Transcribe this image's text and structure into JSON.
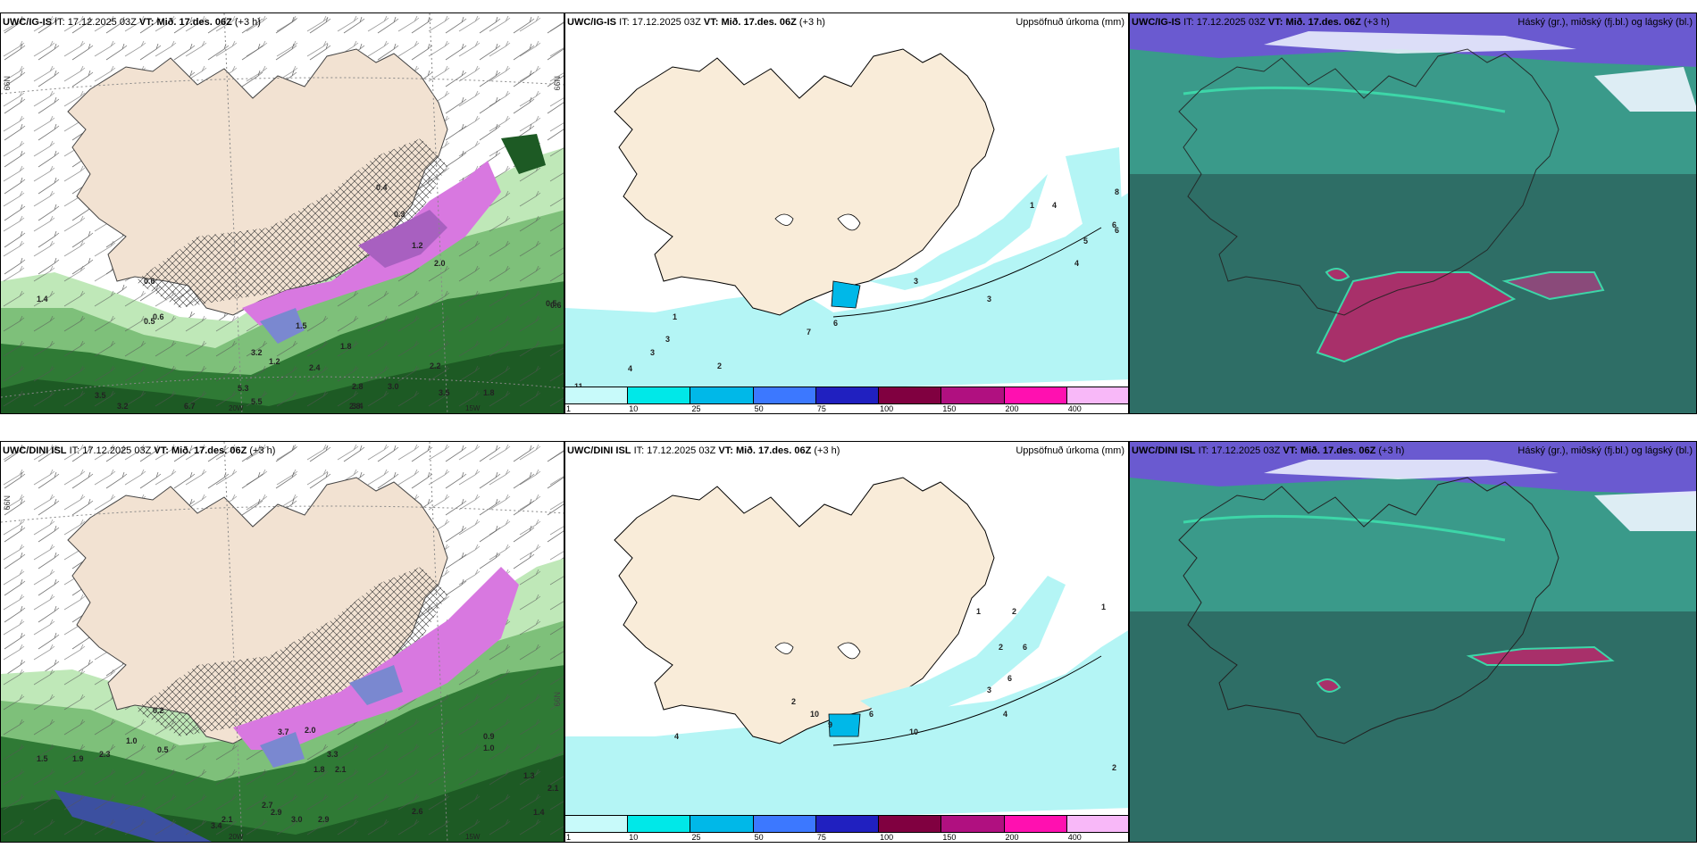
{
  "top": {
    "left": {
      "model": "UWC/IG-IS",
      "it_label": "IT:",
      "it_value": "17.12.2025 03Z",
      "vt_label": "VT:",
      "vt_value": "Mið. 17.des. 06Z",
      "lead": "(+3 h)",
      "lat_label": "66N",
      "lon_labels": [
        "20W",
        "15W"
      ],
      "values": [
        "0.6",
        "0.5",
        "1.4",
        "1.5",
        "3.2",
        "1.2",
        "2.4",
        "1.8",
        "2.8",
        "3.0",
        "3.5",
        "3.2",
        "5.3",
        "5.5",
        "6.7",
        "2.8",
        "3.4",
        "3.5",
        "2.2",
        "1.8",
        "0.5",
        "0.4",
        "0.3",
        "0.6",
        "1.2",
        "2.0",
        "0.6"
      ]
    },
    "middle": {
      "model": "UWC/IG-IS",
      "it_label": "IT:",
      "it_value": "17.12.2025 03Z",
      "vt_label": "VT:",
      "vt_value": "Mið. 17.des. 06Z",
      "lead": "(+3 h)",
      "product": "Uppsöfnuð úrkoma (mm)",
      "values": [
        "1",
        "3",
        "3",
        "4",
        "2",
        "11",
        "7",
        "6",
        "3",
        "3",
        "1",
        "4",
        "4",
        "5",
        "6",
        "8",
        "6"
      ]
    },
    "right": {
      "model": "UWC/IG-IS",
      "it_label": "IT:",
      "it_value": "17.12.2025 03Z",
      "vt_label": "VT:",
      "vt_value": "Mið. 17.des. 06Z",
      "lead": "(+3 h)",
      "product": "Háský (gr.), miðský (fj.bl.) og lágský (bl.)"
    }
  },
  "bottom": {
    "left": {
      "model": "UWC/DINI ISL",
      "it_label": "IT:",
      "it_value": "17.12.2025 03Z",
      "vt_label": "VT:",
      "vt_value": "Mið. 17.des. 06Z",
      "lead": "(+3 h)",
      "lat_label": "66N",
      "lon_labels": [
        "20W",
        "15W"
      ],
      "values": [
        "0.2",
        "1.0",
        "1.5",
        "1.9",
        "2.3",
        "3.3",
        "3.7",
        "2.0",
        "1.8",
        "2.1",
        "2.7",
        "2.9",
        "3.0",
        "2.1",
        "2.9",
        "2.6",
        "3.4",
        "0.9",
        "1.0",
        "1.4",
        "2.1",
        "1.3",
        "0.5"
      ]
    },
    "middle": {
      "model": "UWC/DINI ISL",
      "it_label": "IT:",
      "it_value": "17.12.2025 03Z",
      "vt_label": "VT:",
      "vt_value": "Mið. 17.des. 06Z",
      "lead": "(+3 h)",
      "product": "Uppsöfnuð úrkoma (mm)",
      "values": [
        "4",
        "2",
        "10",
        "9",
        "6",
        "10",
        "1",
        "2",
        "2",
        "6",
        "4",
        "3",
        "6",
        "2",
        "1"
      ]
    },
    "right": {
      "model": "UWC/DINI ISL",
      "it_label": "IT:",
      "it_value": "17.12.2025 03Z",
      "vt_label": "VT:",
      "vt_value": "Mið. 17.des. 06Z",
      "lead": "(+3 h)",
      "product": "Háský (gr.), miðský (fj.bl.) og lágský (bl.)"
    }
  },
  "colorbar": {
    "ticks": [
      "1",
      "10",
      "25",
      "50",
      "75",
      "100",
      "150",
      "200",
      "400"
    ],
    "colors": [
      "#c8fafa",
      "#00e8e8",
      "#00b8e8",
      "#3c78ff",
      "#2020c0",
      "#800040",
      "#b01080",
      "#ff10b0",
      "#f8b8f8"
    ]
  },
  "colors": {
    "land": "#f9ecd9",
    "sea_precip": "#b4f5f5",
    "cloud_low": "#2e6e66",
    "cloud_mid": "#3a9a8a",
    "cloud_high": "#6a5ad0"
  }
}
